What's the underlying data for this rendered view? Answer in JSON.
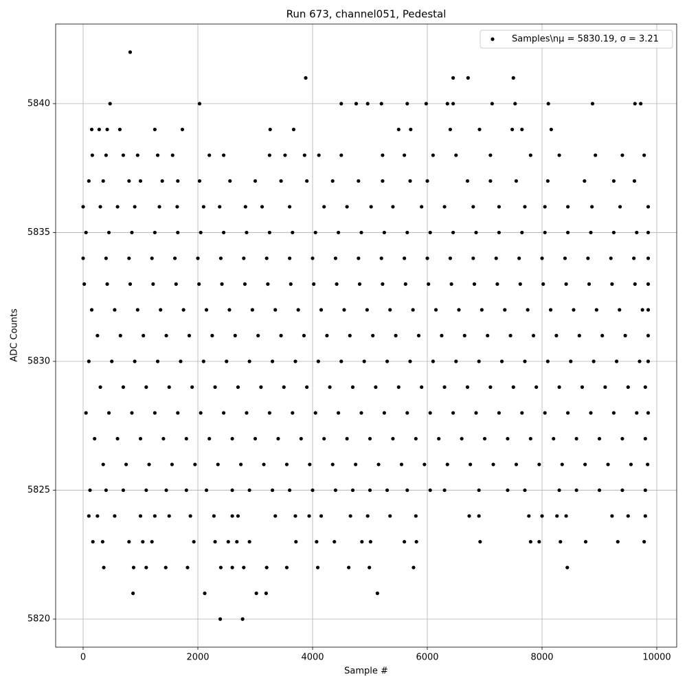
{
  "chart_data": {
    "type": "scatter",
    "title": "Run 673, channel051, Pedestal",
    "x_label": "Sample #",
    "y_label": "ADC Counts",
    "xlim": [
      -479,
      10347
    ],
    "ylim": [
      5818.91,
      5843.09
    ],
    "xticks": [
      0,
      2000,
      4000,
      6000,
      8000,
      10000
    ],
    "yticks": [
      5820,
      5825,
      5830,
      5835,
      5840
    ],
    "grid": true,
    "legend": "upper right",
    "series": [
      {
        "name": "Samples\\nμ = 5830.19, σ = 3.21",
        "color": "#000000",
        "x": [
          820,
          3880,
          6450,
          6710,
          7500,
          470,
          2030,
          4500,
          4760,
          4960,
          5200,
          5650,
          5980,
          6350,
          6450,
          7130,
          7530,
          8110,
          8880,
          9620,
          9720,
          150,
          280,
          420,
          640,
          1250,
          1730,
          3260,
          3670,
          5500,
          5710,
          6400,
          6910,
          7480,
          7650,
          8160,
          160,
          400,
          700,
          950,
          1300,
          1560,
          2200,
          2450,
          3250,
          3520,
          3860,
          4110,
          4500,
          5220,
          5600,
          6100,
          6500,
          7100,
          7800,
          8300,
          8930,
          9400,
          9780,
          100,
          350,
          800,
          1000,
          1380,
          1650,
          2030,
          2560,
          3000,
          3450,
          3900,
          4350,
          4800,
          5220,
          5700,
          6000,
          6700,
          7100,
          7550,
          8100,
          8740,
          9250,
          9610,
          0,
          300,
          600,
          900,
          1330,
          1640,
          2100,
          2380,
          2830,
          3120,
          3600,
          4200,
          4600,
          5020,
          5400,
          5900,
          6300,
          6800,
          7250,
          7700,
          8050,
          8450,
          8870,
          9360,
          9850,
          50,
          450,
          850,
          1250,
          1650,
          2050,
          2450,
          2850,
          3250,
          3650,
          4050,
          4450,
          4850,
          5250,
          5650,
          6050,
          6450,
          6850,
          7250,
          7650,
          8050,
          8450,
          8850,
          9250,
          9650,
          9850,
          0,
          400,
          800,
          1200,
          1600,
          2000,
          2400,
          2800,
          3200,
          3600,
          4000,
          4400,
          4800,
          5200,
          5600,
          6000,
          6400,
          6800,
          7200,
          7600,
          8000,
          8400,
          8800,
          9200,
          9600,
          9850,
          20,
          420,
          820,
          1220,
          1620,
          2020,
          2420,
          2820,
          3220,
          3620,
          4020,
          4420,
          4820,
          5220,
          5620,
          6020,
          6420,
          6820,
          7220,
          7620,
          8020,
          8420,
          8820,
          9220,
          9620,
          9850,
          150,
          550,
          950,
          1350,
          1750,
          2150,
          2550,
          2950,
          3350,
          3750,
          4150,
          4550,
          4950,
          5350,
          5750,
          6150,
          6550,
          6950,
          7350,
          7750,
          8150,
          8550,
          8950,
          9350,
          9750,
          9850,
          250,
          650,
          1050,
          1450,
          1850,
          2250,
          2650,
          3050,
          3450,
          3850,
          4250,
          4650,
          5050,
          5450,
          5850,
          6250,
          6650,
          7050,
          7450,
          7850,
          8250,
          8650,
          9050,
          9450,
          9850,
          100,
          500,
          900,
          1300,
          1700,
          2100,
          2500,
          2900,
          3300,
          3700,
          4100,
          4500,
          4900,
          5300,
          5700,
          6100,
          6500,
          6900,
          7300,
          7700,
          8100,
          8500,
          8900,
          9300,
          9700,
          9850,
          300,
          700,
          1100,
          1500,
          1900,
          2300,
          2700,
          3100,
          3500,
          3900,
          4300,
          4700,
          5100,
          5500,
          5900,
          6300,
          6700,
          7100,
          7500,
          7900,
          8300,
          8700,
          9100,
          9500,
          9800,
          50,
          450,
          850,
          1250,
          1650,
          2050,
          2450,
          2850,
          3250,
          3650,
          4050,
          4450,
          4850,
          5250,
          5650,
          6050,
          6450,
          6850,
          7250,
          7650,
          8050,
          8450,
          8850,
          9250,
          9650,
          9850,
          200,
          600,
          1000,
          1400,
          1800,
          2200,
          2600,
          3000,
          3400,
          3800,
          4200,
          4600,
          5000,
          5400,
          5800,
          6200,
          6600,
          7000,
          7400,
          7800,
          8200,
          8600,
          9000,
          9400,
          9800,
          350,
          750,
          1150,
          1550,
          1950,
          2350,
          2750,
          3150,
          3550,
          3950,
          4350,
          4750,
          5150,
          5550,
          5950,
          6350,
          6750,
          7150,
          7550,
          7950,
          8350,
          8750,
          9150,
          9550,
          9840,
          120,
          400,
          700,
          1100,
          1450,
          1800,
          2150,
          2600,
          2900,
          3300,
          3600,
          4000,
          4400,
          4700,
          5000,
          5300,
          5650,
          6050,
          6300,
          6900,
          7400,
          7700,
          8300,
          8600,
          9000,
          9400,
          9800,
          100,
          250,
          550,
          1000,
          1250,
          1500,
          1870,
          2280,
          2600,
          2700,
          3350,
          3700,
          3940,
          4150,
          4660,
          4960,
          5350,
          5800,
          6730,
          6900,
          7770,
          8000,
          8260,
          8420,
          9220,
          9500,
          9800,
          170,
          340,
          800,
          1040,
          1200,
          1930,
          2300,
          2530,
          2680,
          2900,
          3710,
          4070,
          4380,
          4860,
          5010,
          5600,
          5810,
          6920,
          7800,
          7950,
          8320,
          8760,
          9320,
          9780,
          360,
          880,
          1100,
          1440,
          1820,
          2400,
          2600,
          2800,
          3200,
          3550,
          4090,
          4630,
          4990,
          5760,
          8440,
          870,
          2120,
          3020,
          3190,
          5130,
          2390,
          2780
        ],
        "values": [
          5842,
          5841,
          5841,
          5841,
          5841,
          5840,
          5840,
          5840,
          5840,
          5840,
          5840,
          5840,
          5840,
          5840,
          5840,
          5840,
          5840,
          5840,
          5840,
          5840,
          5840,
          5839,
          5839,
          5839,
          5839,
          5839,
          5839,
          5839,
          5839,
          5839,
          5839,
          5839,
          5839,
          5839,
          5839,
          5839,
          5838,
          5838,
          5838,
          5838,
          5838,
          5838,
          5838,
          5838,
          5838,
          5838,
          5838,
          5838,
          5838,
          5838,
          5838,
          5838,
          5838,
          5838,
          5838,
          5838,
          5838,
          5838,
          5838,
          5837,
          5837,
          5837,
          5837,
          5837,
          5837,
          5837,
          5837,
          5837,
          5837,
          5837,
          5837,
          5837,
          5837,
          5837,
          5837,
          5837,
          5837,
          5837,
          5837,
          5837,
          5837,
          5837,
          5836,
          5836,
          5836,
          5836,
          5836,
          5836,
          5836,
          5836,
          5836,
          5836,
          5836,
          5836,
          5836,
          5836,
          5836,
          5836,
          5836,
          5836,
          5836,
          5836,
          5836,
          5836,
          5836,
          5836,
          5836,
          5835,
          5835,
          5835,
          5835,
          5835,
          5835,
          5835,
          5835,
          5835,
          5835,
          5835,
          5835,
          5835,
          5835,
          5835,
          5835,
          5835,
          5835,
          5835,
          5835,
          5835,
          5835,
          5835,
          5835,
          5835,
          5835,
          5834,
          5834,
          5834,
          5834,
          5834,
          5834,
          5834,
          5834,
          5834,
          5834,
          5834,
          5834,
          5834,
          5834,
          5834,
          5834,
          5834,
          5834,
          5834,
          5834,
          5834,
          5834,
          5834,
          5834,
          5834,
          5834,
          5833,
          5833,
          5833,
          5833,
          5833,
          5833,
          5833,
          5833,
          5833,
          5833,
          5833,
          5833,
          5833,
          5833,
          5833,
          5833,
          5833,
          5833,
          5833,
          5833,
          5833,
          5833,
          5833,
          5833,
          5833,
          5833,
          5832,
          5832,
          5832,
          5832,
          5832,
          5832,
          5832,
          5832,
          5832,
          5832,
          5832,
          5832,
          5832,
          5832,
          5832,
          5832,
          5832,
          5832,
          5832,
          5832,
          5832,
          5832,
          5832,
          5832,
          5832,
          5832,
          5831,
          5831,
          5831,
          5831,
          5831,
          5831,
          5831,
          5831,
          5831,
          5831,
          5831,
          5831,
          5831,
          5831,
          5831,
          5831,
          5831,
          5831,
          5831,
          5831,
          5831,
          5831,
          5831,
          5831,
          5831,
          5830,
          5830,
          5830,
          5830,
          5830,
          5830,
          5830,
          5830,
          5830,
          5830,
          5830,
          5830,
          5830,
          5830,
          5830,
          5830,
          5830,
          5830,
          5830,
          5830,
          5830,
          5830,
          5830,
          5830,
          5830,
          5830,
          5829,
          5829,
          5829,
          5829,
          5829,
          5829,
          5829,
          5829,
          5829,
          5829,
          5829,
          5829,
          5829,
          5829,
          5829,
          5829,
          5829,
          5829,
          5829,
          5829,
          5829,
          5829,
          5829,
          5829,
          5829,
          5828,
          5828,
          5828,
          5828,
          5828,
          5828,
          5828,
          5828,
          5828,
          5828,
          5828,
          5828,
          5828,
          5828,
          5828,
          5828,
          5828,
          5828,
          5828,
          5828,
          5828,
          5828,
          5828,
          5828,
          5828,
          5828,
          5827,
          5827,
          5827,
          5827,
          5827,
          5827,
          5827,
          5827,
          5827,
          5827,
          5827,
          5827,
          5827,
          5827,
          5827,
          5827,
          5827,
          5827,
          5827,
          5827,
          5827,
          5827,
          5827,
          5827,
          5827,
          5826,
          5826,
          5826,
          5826,
          5826,
          5826,
          5826,
          5826,
          5826,
          5826,
          5826,
          5826,
          5826,
          5826,
          5826,
          5826,
          5826,
          5826,
          5826,
          5826,
          5826,
          5826,
          5826,
          5826,
          5826,
          5825,
          5825,
          5825,
          5825,
          5825,
          5825,
          5825,
          5825,
          5825,
          5825,
          5825,
          5825,
          5825,
          5825,
          5825,
          5825,
          5825,
          5825,
          5825,
          5825,
          5825,
          5825,
          5825,
          5825,
          5825,
          5825,
          5825,
          5824,
          5824,
          5824,
          5824,
          5824,
          5824,
          5824,
          5824,
          5824,
          5824,
          5824,
          5824,
          5824,
          5824,
          5824,
          5824,
          5824,
          5824,
          5824,
          5824,
          5824,
          5824,
          5824,
          5824,
          5824,
          5824,
          5824,
          5823,
          5823,
          5823,
          5823,
          5823,
          5823,
          5823,
          5823,
          5823,
          5823,
          5823,
          5823,
          5823,
          5823,
          5823,
          5823,
          5823,
          5823,
          5823,
          5823,
          5823,
          5823,
          5823,
          5823,
          5822,
          5822,
          5822,
          5822,
          5822,
          5822,
          5822,
          5822,
          5822,
          5822,
          5822,
          5822,
          5822,
          5822,
          5822,
          5821,
          5821,
          5821,
          5821,
          5821,
          5820,
          5820
        ]
      }
    ]
  }
}
